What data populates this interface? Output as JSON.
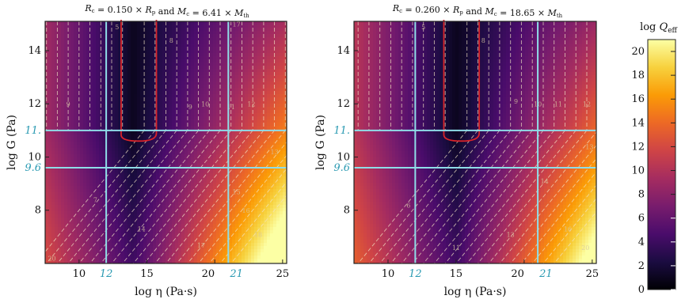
{
  "chart_data": [
    {
      "type": "heatmap",
      "title": "R_c = 0.150 × R_p  and  M_c = 6.41 × M_th",
      "title_parts": {
        "rc_label": "R",
        "rc_sub": "c",
        "rc_text": " = 0.150 × ",
        "rp_label": "R",
        "rp_sub": "p",
        "and": " and ",
        "mc_label": "M",
        "mc_sub": "c",
        "mc_text": " = 6.41 × ",
        "mth_label": "M",
        "mth_sub": "th"
      },
      "xlabel": "log η (Pa·s)",
      "ylabel": "log G (Pa)",
      "xlim": [
        7.5,
        25.3
      ],
      "ylim": [
        6.0,
        15.1
      ],
      "xticks": [
        10,
        15,
        20,
        25
      ],
      "yticks": [
        8,
        10,
        12,
        14
      ],
      "highlight_x": [
        12,
        21
      ],
      "highlight_y": [
        9.6,
        11.0
      ],
      "highlight_x_labels": [
        "12",
        "21"
      ],
      "highlight_y_labels": [
        "9.6",
        "11."
      ],
      "valley_center_log_eta": 14.0,
      "contour_labels": [
        {
          "x": 9.2,
          "y": 11.9,
          "text": "9"
        },
        {
          "x": 12.8,
          "y": 14.8,
          "text": "5"
        },
        {
          "x": 16.8,
          "y": 14.3,
          "text": "8"
        },
        {
          "x": 18.2,
          "y": 11.8,
          "text": "9"
        },
        {
          "x": 19.3,
          "y": 11.9,
          "text": "10"
        },
        {
          "x": 21.2,
          "y": 11.8,
          "text": "11"
        },
        {
          "x": 22.7,
          "y": 11.9,
          "text": "12"
        },
        {
          "x": 21.6,
          "y": 14.9,
          "text": "17"
        },
        {
          "x": 24.4,
          "y": 10.1,
          "text": "13"
        },
        {
          "x": 11.2,
          "y": 8.3,
          "text": "7"
        },
        {
          "x": 14.6,
          "y": 7.2,
          "text": "14"
        },
        {
          "x": 21.6,
          "y": 8.6,
          "text": "15"
        },
        {
          "x": 22.3,
          "y": 7.9,
          "text": "16"
        },
        {
          "x": 19.0,
          "y": 6.6,
          "text": "17"
        },
        {
          "x": 23.2,
          "y": 7.0,
          "text": "18"
        },
        {
          "x": 8.0,
          "y": 6.1,
          "text": "20"
        }
      ]
    },
    {
      "type": "heatmap",
      "title": "R_c = 0.260 × R_p  and  M_c = 18.65 × M_th",
      "title_parts": {
        "rc_label": "R",
        "rc_sub": "c",
        "rc_text": " = 0.260 × ",
        "rp_label": "R",
        "rp_sub": "p",
        "and": " and ",
        "mc_label": "M",
        "mc_sub": "c",
        "mc_text": " = 18.65 × ",
        "mth_label": "M",
        "mth_sub": "th"
      },
      "xlabel": "log η (Pa·s)",
      "ylabel": "log G (Pa)",
      "xlim": [
        7.5,
        25.3
      ],
      "ylim": [
        6.0,
        15.1
      ],
      "xticks": [
        10,
        15,
        20,
        25
      ],
      "yticks": [
        8,
        10,
        12,
        14
      ],
      "highlight_x": [
        12,
        21
      ],
      "highlight_y": [
        9.6,
        11.0
      ],
      "highlight_x_labels": [
        "12",
        "21"
      ],
      "highlight_y_labels": [
        "9.6",
        "11."
      ],
      "valley_center_log_eta": 15.0,
      "contour_labels": [
        {
          "x": 12.6,
          "y": 14.8,
          "text": "5"
        },
        {
          "x": 17.0,
          "y": 14.3,
          "text": "8"
        },
        {
          "x": 19.4,
          "y": 12.0,
          "text": "9"
        },
        {
          "x": 21.0,
          "y": 11.9,
          "text": "10"
        },
        {
          "x": 22.5,
          "y": 11.9,
          "text": "11"
        },
        {
          "x": 24.6,
          "y": 11.9,
          "text": "12"
        },
        {
          "x": 24.8,
          "y": 10.3,
          "text": "13"
        },
        {
          "x": 11.5,
          "y": 8.1,
          "text": "6"
        },
        {
          "x": 21.5,
          "y": 9.0,
          "text": "14"
        },
        {
          "x": 19.0,
          "y": 7.0,
          "text": "13"
        },
        {
          "x": 23.2,
          "y": 7.2,
          "text": "16"
        },
        {
          "x": 24.5,
          "y": 6.5,
          "text": "20"
        },
        {
          "x": 15.0,
          "y": 6.5,
          "text": "11"
        }
      ]
    }
  ],
  "colorbar": {
    "title_main": "log Q",
    "title_sub": "eff",
    "ticks": [
      0,
      2,
      4,
      6,
      8,
      10,
      12,
      14,
      16,
      18,
      20
    ],
    "range": [
      0,
      21
    ]
  },
  "colormap": [
    "#000004",
    "#1b0c41",
    "#4a0c6b",
    "#781c6d",
    "#a52c60",
    "#cf4446",
    "#ed6925",
    "#fb9b06",
    "#f7d13d",
    "#fcffa4"
  ]
}
